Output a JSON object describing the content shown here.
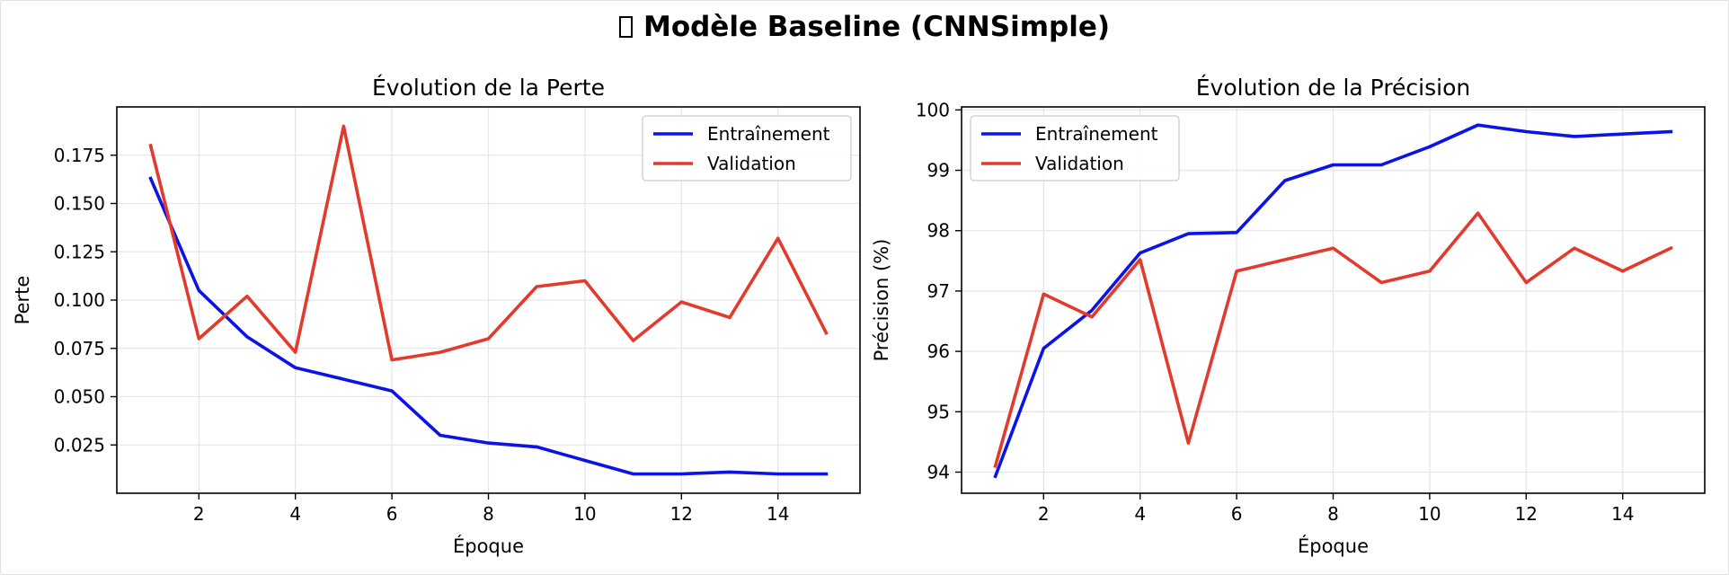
{
  "figure": {
    "title": "Modèle Baseline (CNNSimple)",
    "title_icon": "missing-glyph-box-icon"
  },
  "colors": {
    "train": "#0b13e6",
    "val": "#e33a2e"
  },
  "chart_data": [
    {
      "type": "line",
      "title": "Évolution de la Perte",
      "xlabel": "Époque",
      "ylabel": "Perte",
      "xlim": [
        0.3,
        15.7
      ],
      "ylim": [
        0.0,
        0.2
      ],
      "xticks": [
        2,
        4,
        6,
        8,
        10,
        12,
        14
      ],
      "yticks": [
        0.025,
        0.05,
        0.075,
        0.1,
        0.125,
        0.15,
        0.175
      ],
      "ytick_labels": [
        "0.025",
        "0.050",
        "0.075",
        "0.100",
        "0.125",
        "0.150",
        "0.175"
      ],
      "grid": true,
      "legend_position": "top-right",
      "x": [
        1,
        2,
        3,
        4,
        5,
        6,
        7,
        8,
        9,
        10,
        11,
        12,
        13,
        14,
        15
      ],
      "series": [
        {
          "name": "Entraînement",
          "color": "#0b13e6",
          "values": [
            0.163,
            0.105,
            0.081,
            0.065,
            0.059,
            0.053,
            0.03,
            0.026,
            0.024,
            0.017,
            0.01,
            0.01,
            0.011,
            0.01,
            0.01
          ]
        },
        {
          "name": "Validation",
          "color": "#e33a2e",
          "values": [
            0.18,
            0.08,
            0.102,
            0.073,
            0.19,
            0.069,
            0.073,
            0.08,
            0.107,
            0.11,
            0.079,
            0.099,
            0.091,
            0.132,
            0.083
          ]
        }
      ]
    },
    {
      "type": "line",
      "title": "Évolution de la Précision",
      "xlabel": "Époque",
      "ylabel": "Précision (%)",
      "xlim": [
        0.3,
        15.7
      ],
      "ylim": [
        93.65,
        100.05
      ],
      "xticks": [
        2,
        4,
        6,
        8,
        10,
        12,
        14
      ],
      "yticks": [
        94,
        95,
        96,
        97,
        98,
        99,
        100
      ],
      "ytick_labels": [
        "94",
        "95",
        "96",
        "97",
        "98",
        "99",
        "100"
      ],
      "grid": true,
      "legend_position": "top-left",
      "x": [
        1,
        2,
        3,
        4,
        5,
        6,
        7,
        8,
        9,
        10,
        11,
        12,
        13,
        14,
        15
      ],
      "series": [
        {
          "name": "Entraînement",
          "color": "#0b13e6",
          "values": [
            93.93,
            96.05,
            96.68,
            97.63,
            97.95,
            97.97,
            98.83,
            99.09,
            99.09,
            99.39,
            99.75,
            99.64,
            99.56,
            99.6,
            99.64
          ]
        },
        {
          "name": "Validation",
          "color": "#e33a2e",
          "values": [
            94.1,
            96.95,
            96.57,
            97.52,
            94.48,
            97.33,
            97.52,
            97.71,
            97.14,
            97.33,
            98.29,
            97.14,
            97.71,
            97.33,
            97.71
          ]
        }
      ]
    }
  ]
}
